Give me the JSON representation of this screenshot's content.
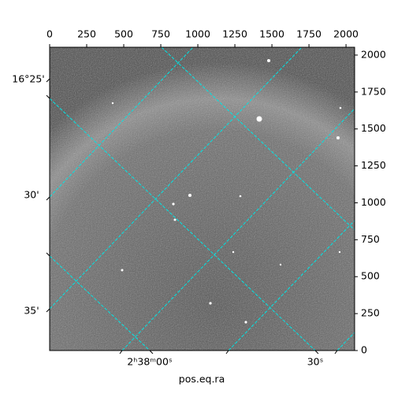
{
  "chart_data": {
    "type": "image",
    "xlim": [
      0,
      2058
    ],
    "xticks": [
      0,
      250,
      500,
      750,
      1000,
      1250,
      1500,
      1750,
      2000
    ],
    "ylim": [
      0,
      2053
    ],
    "yticks": [
      0,
      250,
      500,
      750,
      1000,
      1250,
      1500,
      1750,
      2000
    ],
    "dec_labels": [
      "16°25'",
      "30'",
      "35'"
    ],
    "ra_labels": [
      "2ʰ38ᵐ00ˢ",
      "30ˢ"
    ],
    "xlabel": "pos.eq.ra",
    "grid_color": "#00e5e5"
  }
}
